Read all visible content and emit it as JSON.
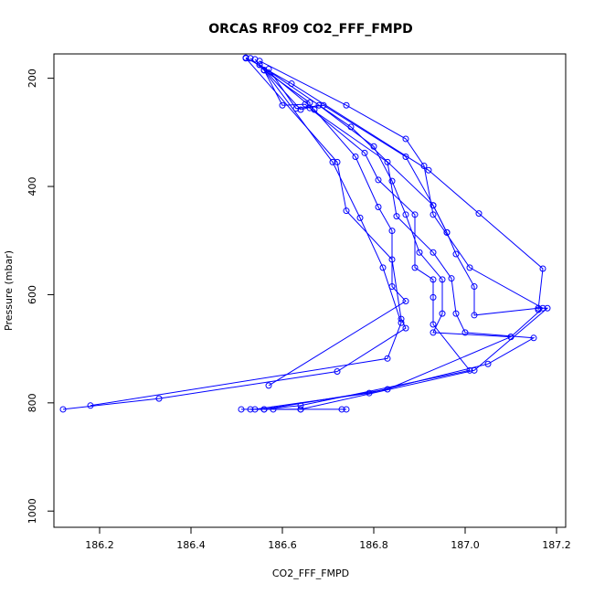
{
  "chart_data": {
    "type": "line",
    "title": "ORCAS RF09 CO2_FFF_FMPD",
    "xlabel": "CO2_FFF_FMPD",
    "ylabel": "Pressure (mbar)",
    "xlim": [
      186.1,
      187.22
    ],
    "ylim": [
      1030,
      155
    ],
    "y_reversed": true,
    "x_ticks": [
      186.2,
      186.4,
      186.6,
      186.8,
      187.0,
      187.2
    ],
    "x_tick_labels": [
      "186.2",
      "186.4",
      "186.6",
      "186.8",
      "187.0",
      "187.2"
    ],
    "y_ticks": [
      200,
      400,
      600,
      800,
      1000
    ],
    "y_tick_labels": [
      "200",
      "400",
      "600",
      "800",
      "1000"
    ],
    "line_color": "#0000ff",
    "marker": "open-circle",
    "grid": false,
    "legend": "none",
    "series": [
      {
        "points": [
          [
            186.52,
            163
          ],
          [
            186.72,
            355
          ],
          [
            186.74,
            445
          ],
          [
            186.84,
            535
          ],
          [
            186.86,
            645
          ],
          [
            186.87,
            662
          ],
          [
            186.72,
            742
          ],
          [
            186.33,
            792
          ],
          [
            186.12,
            812
          ]
        ]
      },
      {
        "points": [
          [
            186.53,
            163
          ],
          [
            186.56,
            185
          ],
          [
            186.71,
            355
          ],
          [
            186.77,
            458
          ],
          [
            186.82,
            550
          ],
          [
            186.86,
            652
          ],
          [
            186.83,
            718
          ],
          [
            186.18,
            805
          ]
        ]
      },
      {
        "points": [
          [
            186.55,
            175
          ],
          [
            186.67,
            258
          ],
          [
            186.76,
            345
          ],
          [
            186.81,
            438
          ],
          [
            186.84,
            482
          ],
          [
            186.84,
            585
          ],
          [
            186.87,
            612
          ],
          [
            186.57,
            768
          ]
        ]
      },
      {
        "points": [
          [
            186.56,
            185
          ],
          [
            186.6,
            250
          ],
          [
            186.65,
            248
          ],
          [
            186.78,
            338
          ],
          [
            186.81,
            388
          ],
          [
            186.89,
            452
          ],
          [
            186.89,
            550
          ],
          [
            186.93,
            572
          ],
          [
            186.93,
            605
          ],
          [
            186.93,
            655
          ],
          [
            187.01,
            740
          ],
          [
            186.64,
            805
          ],
          [
            186.56,
            812
          ]
        ]
      },
      {
        "points": [
          [
            186.54,
            165
          ],
          [
            186.64,
            258
          ],
          [
            186.68,
            250
          ],
          [
            186.8,
            326
          ],
          [
            186.84,
            390
          ],
          [
            186.87,
            452
          ],
          [
            186.9,
            522
          ],
          [
            186.95,
            572
          ],
          [
            186.95,
            635
          ],
          [
            186.93,
            670
          ],
          [
            187.1,
            678
          ],
          [
            186.83,
            775
          ],
          [
            186.56,
            812
          ],
          [
            186.51,
            812
          ]
        ]
      },
      {
        "points": [
          [
            186.56,
            185
          ],
          [
            186.66,
            245
          ],
          [
            186.66,
            255
          ],
          [
            186.83,
            355
          ],
          [
            186.85,
            455
          ],
          [
            186.93,
            522
          ],
          [
            186.97,
            570
          ],
          [
            186.98,
            635
          ],
          [
            187.0,
            670
          ],
          [
            187.15,
            680
          ],
          [
            187.05,
            728
          ],
          [
            186.79,
            782
          ],
          [
            186.54,
            812
          ]
        ]
      },
      {
        "points": [
          [
            186.57,
            183
          ],
          [
            186.63,
            256
          ],
          [
            186.69,
            250
          ],
          [
            186.87,
            345
          ],
          [
            186.93,
            435
          ],
          [
            186.96,
            485
          ],
          [
            186.98,
            525
          ],
          [
            187.02,
            585
          ],
          [
            187.02,
            638
          ],
          [
            187.16,
            625
          ],
          [
            187.18,
            625
          ],
          [
            187.02,
            740
          ],
          [
            186.64,
            812
          ],
          [
            186.58,
            812
          ]
        ]
      },
      {
        "points": [
          [
            186.55,
            168
          ],
          [
            186.74,
            250
          ],
          [
            186.87,
            312
          ],
          [
            186.91,
            362
          ],
          [
            186.93,
            452
          ],
          [
            187.01,
            550
          ],
          [
            187.17,
            625
          ],
          [
            187.1,
            678
          ]
        ]
      },
      {
        "points": [
          [
            186.52,
            162
          ],
          [
            186.62,
            210
          ],
          [
            186.92,
            370
          ],
          [
            187.03,
            450
          ],
          [
            187.17,
            552
          ],
          [
            187.16,
            628
          ]
        ]
      },
      {
        "points": [
          [
            186.55,
            175
          ],
          [
            186.75,
            290
          ],
          [
            186.93,
            435
          ],
          [
            186.96,
            485
          ]
        ]
      },
      {
        "points": [
          [
            186.53,
            812
          ],
          [
            186.64,
            812
          ],
          [
            186.74,
            812
          ],
          [
            186.73,
            812
          ]
        ]
      }
    ]
  }
}
